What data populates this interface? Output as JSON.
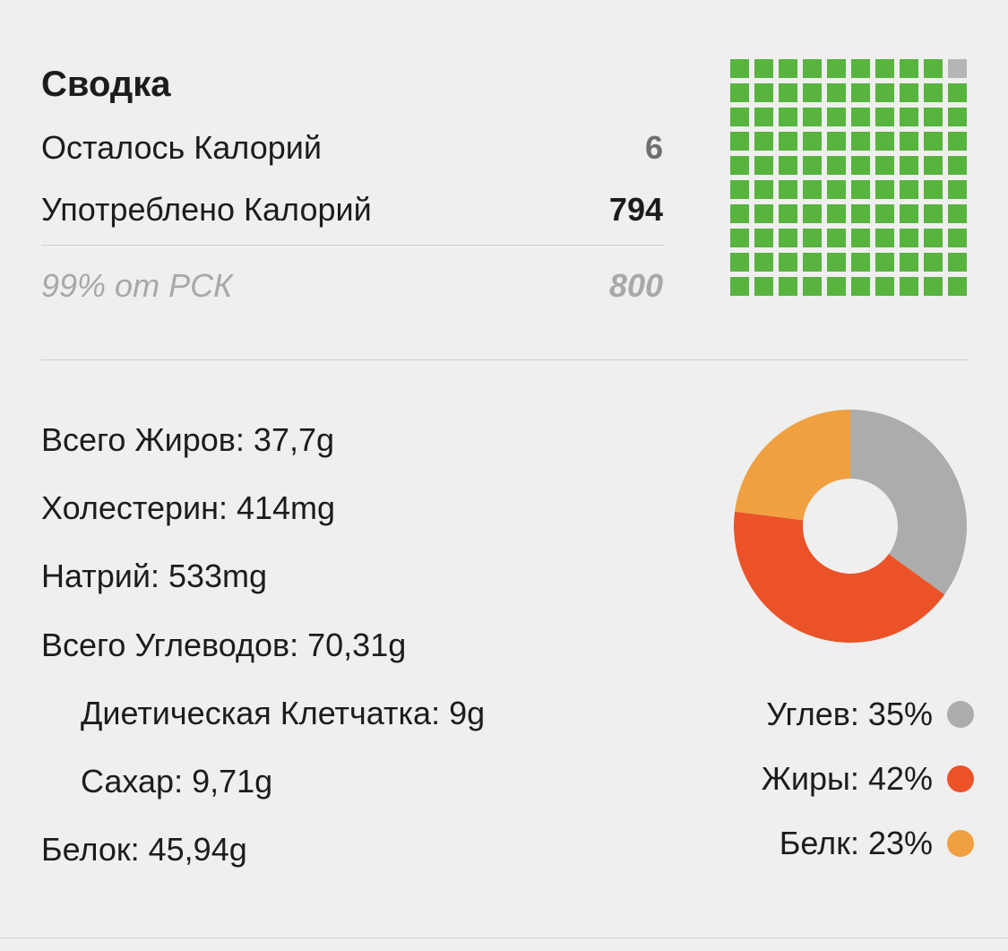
{
  "summary": {
    "title": "Сводка",
    "remaining_label": "Осталось Калорий",
    "remaining_value": "6",
    "consumed_label": "Употреблено Калорий",
    "consumed_value": "794",
    "percent_label": "99% от РСК",
    "goal_value": "800"
  },
  "calorie_grid": {
    "total_cells": 100,
    "filled_cells": 99,
    "filled_color": "#58b33f",
    "empty_color": "#b5b5b5"
  },
  "nutrients": [
    {
      "text": "Всего Жиров: 37,7g"
    },
    {
      "text": "Холестерин: 414mg"
    },
    {
      "text": "Натрий: 533mg"
    },
    {
      "text": "Всего Углеводов: 70,31g"
    },
    {
      "text": "Диетическая Клетчатка: 9g"
    },
    {
      "text": "Сахар: 9,71g"
    },
    {
      "text": "Белок: 45,94g"
    }
  ],
  "macro_legend": [
    {
      "label": "Углев: 35%",
      "color": "#acacac"
    },
    {
      "label": "Жиры: 42%",
      "color": "#eb5228"
    },
    {
      "label": "Белк: 23%",
      "color": "#f0a040"
    }
  ],
  "chart_data": {
    "type": "pie",
    "style": "donut",
    "categories": [
      "Углев",
      "Жиры",
      "Белк"
    ],
    "values": [
      35,
      42,
      23
    ],
    "colors": [
      "#acacac",
      "#eb5228",
      "#f0a040"
    ]
  }
}
